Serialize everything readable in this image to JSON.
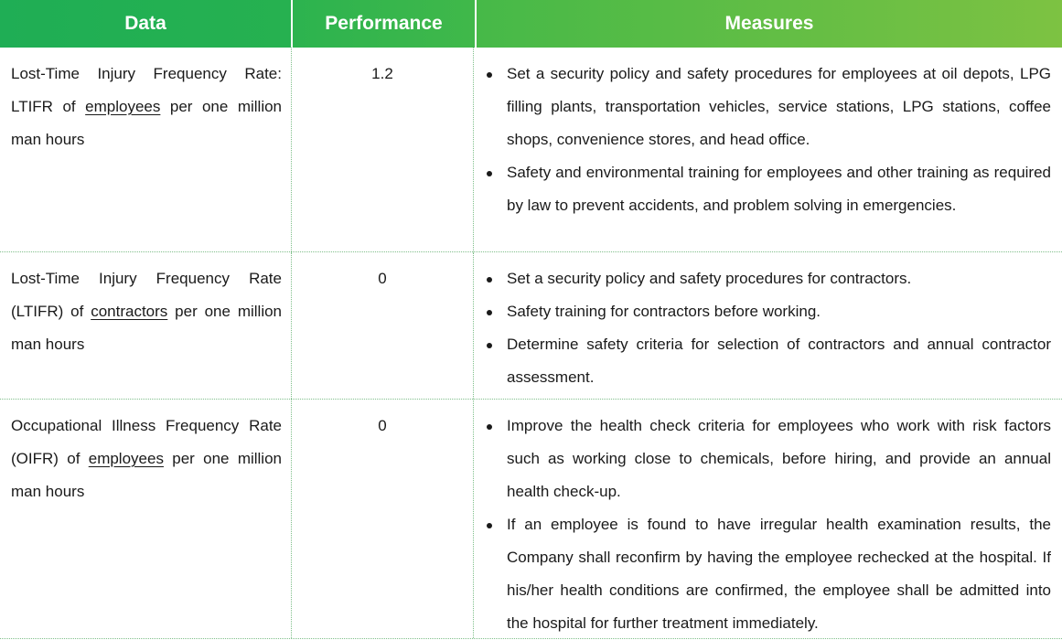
{
  "headers": {
    "data": "Data",
    "performance": "Performance",
    "measures": "Measures"
  },
  "rows": [
    {
      "data_before": "Lost-Time Injury Frequency Rate: LTIFR of ",
      "data_underlined": "employees",
      "data_after": " per one million man hours",
      "performance": "1.2",
      "measures": [
        "Set a security policy and safety procedures for employees at oil depots, LPG filling plants, transportation vehicles, service stations, LPG stations, coffee shops, convenience stores, and head office.",
        "Safety and environmental training for employees and other training as required by law to prevent accidents, and problem solving in emergencies."
      ]
    },
    {
      "data_before": "Lost-Time Injury Frequency Rate (LTIFR) of ",
      "data_underlined": "contractors",
      "data_after": " per one million man hours",
      "performance": "0",
      "measures": [
        "Set a security policy and safety procedures for contractors.",
        "Safety training for contractors before working.",
        "Determine safety criteria for selection of contractors and annual contractor assessment."
      ]
    },
    {
      "data_before": "Occupational Illness Frequency Rate (OIFR) of ",
      "data_underlined": "employees",
      "data_after": " per one million man hours",
      "performance": "0",
      "measures": [
        "Improve the health check criteria for employees who work with risk factors such as working close to chemicals, before hiring, and provide an annual health check-up.",
        "If an employee is found to have irregular health examination results, the Company shall reconfirm by having the employee rechecked at the hospital. If his/her health conditions are confirmed, the employee shall be admitted into the hospital for further treatment immediately."
      ]
    }
  ],
  "colors": {
    "header_green_left": "#1fae55",
    "header_green_right": "#7dc242",
    "divider": "#7fbf8a"
  }
}
